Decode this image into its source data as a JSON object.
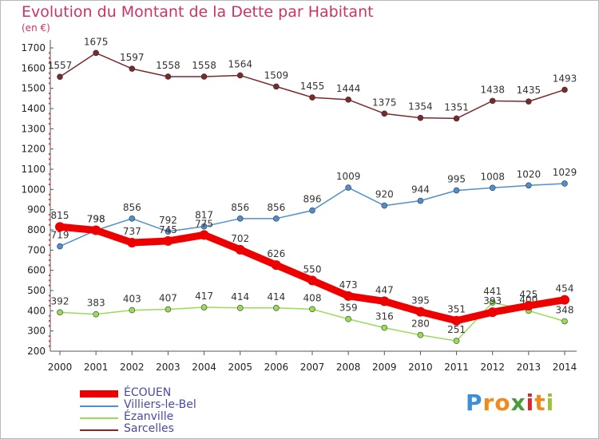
{
  "chart_data": {
    "type": "line",
    "title": "Evolution du Montant de la Dette par Habitant",
    "unit_label": "(en €)",
    "x": [
      "2000",
      "2001",
      "2002",
      "2003",
      "2004",
      "2005",
      "2006",
      "2007",
      "2008",
      "2009",
      "2010",
      "2011",
      "2012",
      "2013",
      "2014"
    ],
    "ylim": [
      200,
      1700
    ],
    "yticks": [
      200,
      300,
      400,
      500,
      600,
      700,
      800,
      900,
      1000,
      1100,
      1200,
      1300,
      1400,
      1500,
      1600,
      1700
    ],
    "grid": false,
    "legend_position": "bottom-left",
    "series": [
      {
        "name": "Sarcelles",
        "color": "#7a2a2a",
        "values": [
          1557,
          1675,
          1597,
          1558,
          1558,
          1564,
          1509,
          1455,
          1444,
          1375,
          1354,
          1351,
          1438,
          1435,
          1493
        ]
      },
      {
        "name": "Villiers-le-Bel",
        "color": "#4f8fce",
        "values": [
          719,
          798,
          856,
          792,
          817,
          856,
          856,
          896,
          1009,
          920,
          944,
          995,
          1008,
          1020,
          1029
        ]
      },
      {
        "name": "Ézanville",
        "color": "#99dd55",
        "values": [
          392,
          383,
          403,
          407,
          417,
          414,
          414,
          408,
          359,
          316,
          280,
          251,
          441,
          400,
          348
        ]
      },
      {
        "name": "ÉCOUEN",
        "color": "#ee0000",
        "values": [
          815,
          798,
          737,
          745,
          775,
          702,
          626,
          550,
          473,
          447,
          395,
          351,
          393,
          425,
          454
        ]
      }
    ],
    "legend_order": [
      "ÉCOUEN",
      "Villiers-le-Bel",
      "Ézanville",
      "Sarcelles"
    ]
  },
  "logo": {
    "letters": [
      {
        "ch": "P",
        "color": "#3a8fd8"
      },
      {
        "ch": "r",
        "color": "#f08a1c"
      },
      {
        "ch": "o",
        "color": "#f08a1c"
      },
      {
        "ch": "x",
        "color": "#4a9c3a"
      },
      {
        "ch": "i",
        "color": "#d8282a"
      },
      {
        "ch": "t",
        "color": "#f08a1c"
      },
      {
        "ch": "i",
        "color": "#9ac23a"
      }
    ]
  }
}
